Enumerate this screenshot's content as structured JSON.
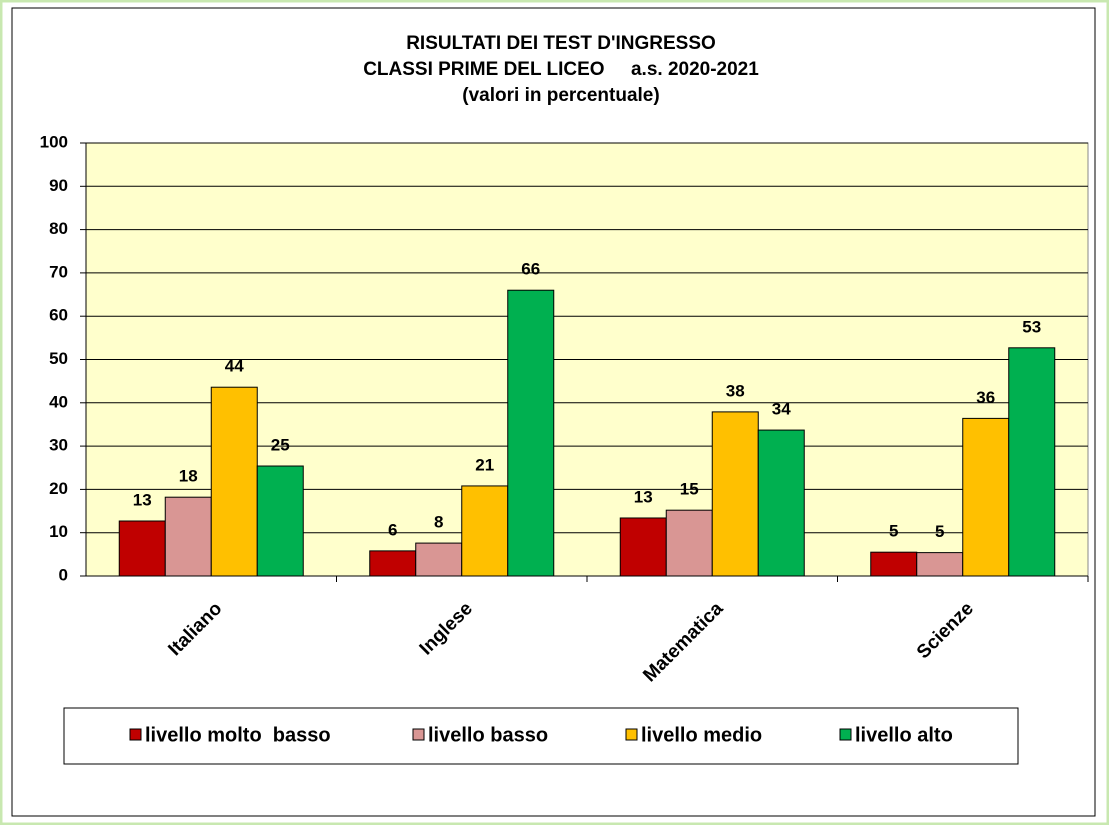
{
  "chart_data": {
    "type": "bar",
    "title": [
      "RISULTATI DEI TEST D'INGRESSO",
      "CLASSI PRIME DEL LICEO     a.s. 2020-2021",
      "(valori in percentuale)"
    ],
    "categories": [
      "Italiano",
      "Inglese",
      "Matematica",
      "Scienze"
    ],
    "series": [
      {
        "name": "livello molto  basso",
        "color": "#c00000",
        "values": [
          12.7,
          5.8,
          13.4,
          5.5
        ],
        "value_labels": [
          "13",
          "6",
          "13",
          "5"
        ]
      },
      {
        "name": "livello basso",
        "color": "#d99694",
        "values": [
          18.2,
          7.6,
          15.2,
          5.4
        ],
        "value_labels": [
          "18",
          "8",
          "15",
          "5"
        ]
      },
      {
        "name": "livello medio",
        "color": "#ffc000",
        "values": [
          43.6,
          20.8,
          37.9,
          36.4
        ],
        "value_labels": [
          "44",
          "21",
          "38",
          "36"
        ]
      },
      {
        "name": "livello alto",
        "color": "#00b050",
        "values": [
          25.4,
          66.0,
          33.7,
          52.7
        ],
        "value_labels": [
          "25",
          "66",
          "34",
          "53"
        ]
      }
    ],
    "ylim": [
      0,
      100
    ],
    "yticks": [
      0,
      10,
      20,
      30,
      40,
      50,
      60,
      70,
      80,
      90,
      100
    ],
    "grid": true,
    "legend": "bottom"
  }
}
